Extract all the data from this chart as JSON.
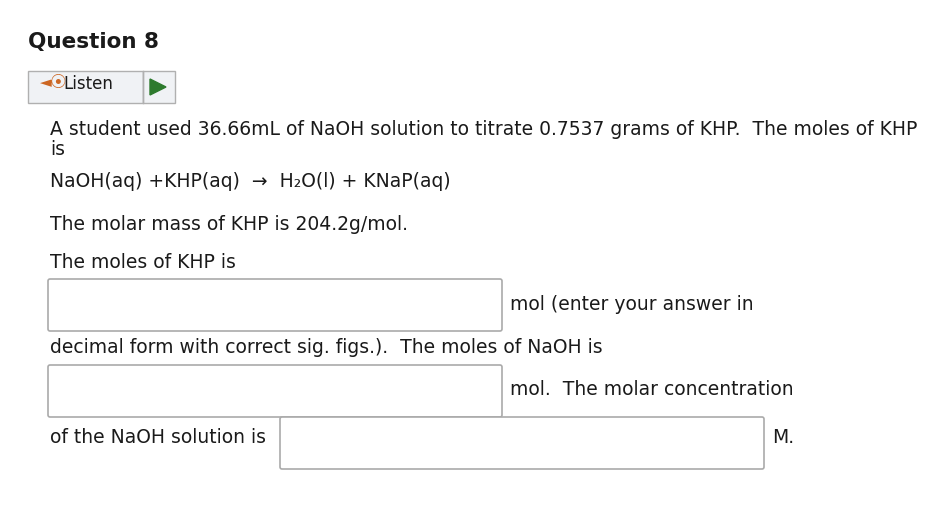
{
  "title": "Question 8",
  "listen_button_text": "Listen",
  "paragraph1_line1": "A student used 36.66mL of NaOH solution to titrate 0.7537 grams of KHP.  The moles of KHP",
  "paragraph1_line2": "is",
  "equation": "NaOH(aq) +KHP(aq)  →  H₂O(l) + KNaP(aq)",
  "molar_mass_line": "The molar mass of KHP is 204.2g/mol.",
  "moles_khp_line": "The moles of KHP is",
  "input_box1_label": "mol (enter your answer in",
  "wrap_line": "decimal form with correct sig. figs.).  The moles of NaOH is",
  "input_box2_label": "mol.  The molar concentration",
  "last_line_prefix": "of the NaOH solution is",
  "last_line_suffix": "M.",
  "bg_color": "#ffffff",
  "text_color": "#1a1a1a",
  "font_size": 13.5,
  "title_font_size": 15.5
}
